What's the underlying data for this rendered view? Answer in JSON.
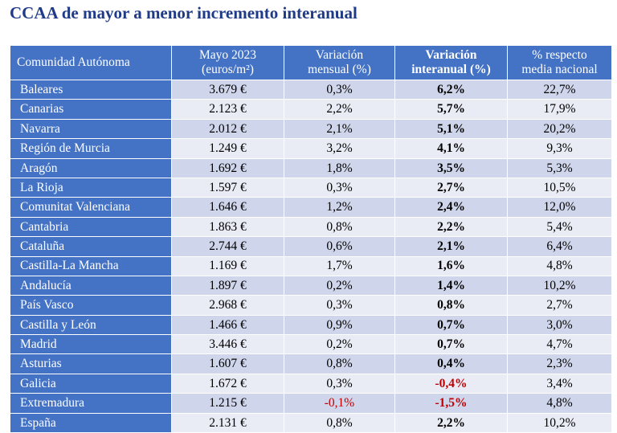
{
  "title": "CCAA de mayor a menor incremento interanual",
  "table": {
    "headers": [
      "Comunidad Autónoma",
      "Mayo 2023\n(euros/m²)",
      "Variación\nmensual (%)",
      "Variación\ninteranual (%)",
      "% respecto\nmedia nacional"
    ],
    "rows": [
      {
        "region": "Baleares",
        "price": "3.679 €",
        "monthly": "0,3%",
        "annual": "6,2%",
        "vs_national": "22,7%"
      },
      {
        "region": "Canarias",
        "price": "2.123 €",
        "monthly": "2,2%",
        "annual": "5,7%",
        "vs_national": "17,9%"
      },
      {
        "region": "Navarra",
        "price": "2.012 €",
        "monthly": "2,1%",
        "annual": "5,1%",
        "vs_national": "20,2%"
      },
      {
        "region": "Región de Murcia",
        "price": "1.249 €",
        "monthly": "3,2%",
        "annual": "4,1%",
        "vs_national": "9,3%"
      },
      {
        "region": "Aragón",
        "price": "1.692 €",
        "monthly": "1,8%",
        "annual": "3,5%",
        "vs_national": "5,3%"
      },
      {
        "region": "La Rioja",
        "price": "1.597 €",
        "monthly": "0,3%",
        "annual": "2,7%",
        "vs_national": "10,5%"
      },
      {
        "region": "Comunitat Valenciana",
        "price": "1.646 €",
        "monthly": "1,2%",
        "annual": "2,4%",
        "vs_national": "12,0%"
      },
      {
        "region": "Cantabria",
        "price": "1.863 €",
        "monthly": "0,8%",
        "annual": "2,2%",
        "vs_national": "5,4%"
      },
      {
        "region": "Cataluña",
        "price": "2.744 €",
        "monthly": "0,6%",
        "annual": "2,1%",
        "vs_national": "6,4%"
      },
      {
        "region": "Castilla-La Mancha",
        "price": "1.169 €",
        "monthly": "1,7%",
        "annual": "1,6%",
        "vs_national": "4,8%"
      },
      {
        "region": "Andalucía",
        "price": "1.897 €",
        "monthly": "0,2%",
        "annual": "1,4%",
        "vs_national": "10,2%"
      },
      {
        "region": "País Vasco",
        "price": "2.968 €",
        "monthly": "0,3%",
        "annual": "0,8%",
        "vs_national": "2,7%"
      },
      {
        "region": "Castilla y León",
        "price": "1.466 €",
        "monthly": "0,9%",
        "annual": "0,7%",
        "vs_national": "3,0%"
      },
      {
        "region": "Madrid",
        "price": "3.446 €",
        "monthly": "0,2%",
        "annual": "0,7%",
        "vs_national": "4,7%"
      },
      {
        "region": "Asturias",
        "price": "1.607 €",
        "monthly": "0,8%",
        "annual": "0,4%",
        "vs_national": "2,3%"
      },
      {
        "region": "Galicia",
        "price": "1.672 €",
        "monthly": "0,3%",
        "annual": "-0,4%",
        "vs_national": "3,4%"
      },
      {
        "region": "Extremadura",
        "price": "1.215 €",
        "monthly": "-0,1%",
        "annual": "-1,5%",
        "vs_national": "4,8%"
      },
      {
        "region": "España",
        "price": "2.131 €",
        "monthly": "0,8%",
        "annual": "2,2%",
        "vs_national": "10,2%"
      }
    ]
  },
  "colors": {
    "title": "#1f3a86",
    "header_bg": "#4472c4",
    "row_band_dark": "#cfd5ea",
    "row_band_light": "#e9ebf5",
    "negative": "#c00000"
  }
}
